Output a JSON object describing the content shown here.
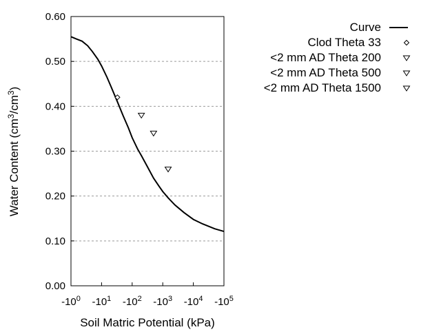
{
  "chart_data": {
    "type": "scatter",
    "xlabel": "Soil Matric Potential (kPa)",
    "ylabel_parts": [
      "Water Content (cm",
      "3",
      "/cm",
      "3",
      ")"
    ],
    "x_scale": "log",
    "xlim": [
      1,
      100000
    ],
    "x_ticks": [
      {
        "base": "-10",
        "exp": "0"
      },
      {
        "base": "-10",
        "exp": "1"
      },
      {
        "base": "-10",
        "exp": "2"
      },
      {
        "base": "-10",
        "exp": "3"
      },
      {
        "base": "-10",
        "exp": "4"
      },
      {
        "base": "-10",
        "exp": "5"
      }
    ],
    "ylim": [
      0,
      0.6
    ],
    "y_ticks": [
      "0.00",
      "0.10",
      "0.20",
      "0.30",
      "0.40",
      "0.50",
      "0.60"
    ],
    "grid": "horizontal dotted",
    "legend_position": "top-right outside",
    "series": [
      {
        "name": "Curve",
        "kind": "line",
        "color": "#000000",
        "x": [
          1,
          1.5,
          2.3,
          3.5,
          5,
          7.5,
          10,
          15,
          20,
          33,
          50,
          75,
          100,
          150,
          200,
          300,
          500,
          750,
          1000,
          1500,
          2500,
          5000,
          10000,
          20000,
          50000,
          100000
        ],
        "y": [
          0.555,
          0.55,
          0.545,
          0.535,
          0.522,
          0.505,
          0.49,
          0.465,
          0.445,
          0.41,
          0.38,
          0.352,
          0.33,
          0.305,
          0.29,
          0.268,
          0.24,
          0.222,
          0.21,
          0.196,
          0.18,
          0.163,
          0.148,
          0.138,
          0.127,
          0.121
        ]
      },
      {
        "name": "Clod Theta 33",
        "kind": "diamond",
        "x": [
          33
        ],
        "y": [
          0.42
        ]
      },
      {
        "name": "<2 mm AD Theta 200",
        "kind": "triangle-down",
        "x": [
          200
        ],
        "y": [
          0.38
        ]
      },
      {
        "name": "<2 mm AD Theta 500",
        "kind": "triangle-down",
        "x": [
          500
        ],
        "y": [
          0.34
        ]
      },
      {
        "name": "<2 mm AD Theta 1500",
        "kind": "triangle-down",
        "x": [
          1500
        ],
        "y": [
          0.26
        ]
      }
    ]
  }
}
